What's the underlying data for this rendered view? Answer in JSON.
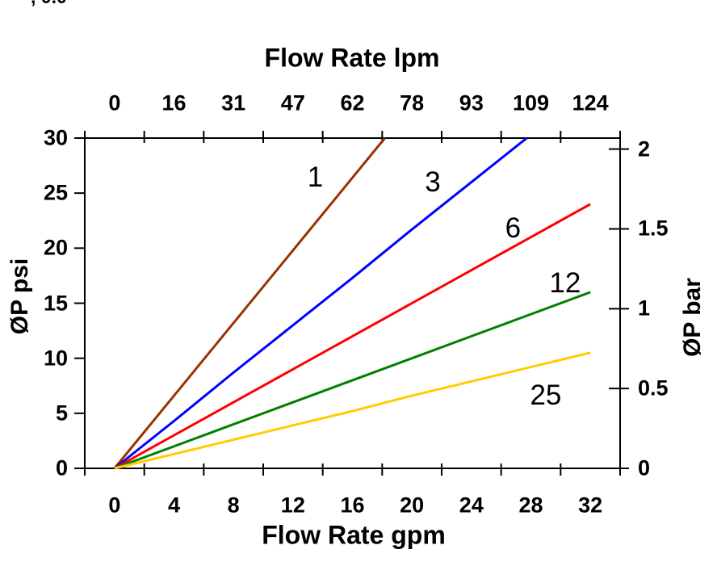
{
  "page": {
    "background": "#ffffff",
    "top_left_clipped_fragment": ", 0.0"
  },
  "chart_data": {
    "type": "line",
    "grid": false,
    "legend": "inline labels next to each line",
    "top_axis": {
      "title": "Flow Rate lpm",
      "tick_labels": [
        "0",
        "16",
        "31",
        "47",
        "62",
        "78",
        "93",
        "109",
        "124"
      ]
    },
    "bottom_axis": {
      "title": "Flow Rate gpm",
      "tick_labels": [
        "0",
        "4",
        "8",
        "12",
        "16",
        "20",
        "24",
        "28",
        "32"
      ],
      "tick_values": [
        0,
        4,
        8,
        12,
        16,
        20,
        24,
        28,
        32
      ],
      "min": 0,
      "max": 32
    },
    "left_axis": {
      "title": "ØP psi",
      "tick_labels": [
        "0",
        "5",
        "10",
        "15",
        "20",
        "25",
        "30"
      ],
      "tick_values": [
        0,
        5,
        10,
        15,
        20,
        25,
        30
      ],
      "min": 0,
      "max": 30
    },
    "right_axis": {
      "title": "ØP bar",
      "tick_labels": [
        "0",
        "0.5",
        "1",
        "1.5",
        "2"
      ],
      "tick_values": [
        0,
        0.5,
        1,
        1.5,
        2
      ],
      "psi_per_bar": 14.5
    },
    "series": [
      {
        "label": "1",
        "color": "#993300",
        "x_gpm": [
          0,
          4,
          8,
          12,
          16,
          20
        ],
        "y_psi": [
          0,
          6.6,
          13.2,
          19.8,
          26.4,
          33.0
        ],
        "clipped_at_psi": 30,
        "label_pos": {
          "gpm": 13.5,
          "psi": 26.4
        }
      },
      {
        "label": "3",
        "color": "#0000FF",
        "x_gpm": [
          0,
          4,
          8,
          12,
          16,
          20,
          24,
          28
        ],
        "y_psi": [
          0,
          4.3,
          8.7,
          13.0,
          17.3,
          21.7,
          26.0,
          30.3
        ],
        "clipped_at_psi": 30,
        "label_pos": {
          "gpm": 21.4,
          "psi": 26.0
        }
      },
      {
        "label": "6",
        "color": "#FF0000",
        "x_gpm": [
          0,
          4,
          8,
          12,
          16,
          20,
          24,
          28,
          32
        ],
        "y_psi": [
          0,
          3,
          6,
          9,
          12,
          15,
          18,
          21,
          24
        ],
        "label_pos": {
          "gpm": 26.8,
          "psi": 21.8
        }
      },
      {
        "label": "12",
        "color": "#008000",
        "x_gpm": [
          0,
          4,
          8,
          12,
          16,
          20,
          24,
          28,
          32
        ],
        "y_psi": [
          0,
          2,
          4,
          6,
          8,
          10,
          12,
          14,
          16
        ],
        "label_pos": {
          "gpm": 30.3,
          "psi": 16.8
        }
      },
      {
        "label": "25",
        "color": "#FFCC00",
        "x_gpm": [
          0,
          4,
          8,
          12,
          16,
          20,
          24,
          28,
          32
        ],
        "y_psi": [
          0,
          1.3,
          2.6,
          3.9,
          5.2,
          6.6,
          7.9,
          9.2,
          10.5
        ],
        "label_pos": {
          "gpm": 29.0,
          "psi": 6.6
        }
      }
    ]
  }
}
